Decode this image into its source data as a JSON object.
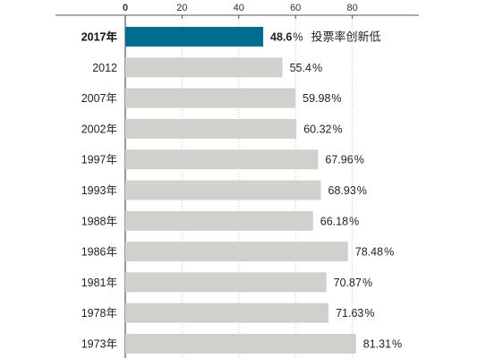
{
  "chart_data": {
    "type": "bar",
    "orientation": "horizontal",
    "title": "",
    "xlabel": "",
    "ylabel": "",
    "xlim": [
      0,
      100
    ],
    "ticks": [
      "0",
      "20",
      "40",
      "60",
      "80"
    ],
    "tick_values": [
      0,
      20,
      40,
      60,
      80
    ],
    "categories": [
      "2017年",
      "2012",
      "2007年",
      "2002年",
      "1997年",
      "1993年",
      "1988年",
      "1986年",
      "1981年",
      "1978年",
      "1973年"
    ],
    "values": [
      48.6,
      55.4,
      59.98,
      60.32,
      67.96,
      68.93,
      66.18,
      78.48,
      70.87,
      71.63,
      81.31
    ],
    "value_labels": [
      "48.6",
      "55.4",
      "59.98",
      "60.32",
      "67.96",
      "68.93",
      "66.18",
      "78.48",
      "70.87",
      "71.63",
      "81.31"
    ],
    "unit": "%",
    "highlight_index": 0,
    "annotation": "投票率创新低",
    "grid": true,
    "colors": {
      "highlight": "#006d8f",
      "bar": "#d0d0cd",
      "grid": "#bfbfbf",
      "axis": "#555555"
    }
  }
}
